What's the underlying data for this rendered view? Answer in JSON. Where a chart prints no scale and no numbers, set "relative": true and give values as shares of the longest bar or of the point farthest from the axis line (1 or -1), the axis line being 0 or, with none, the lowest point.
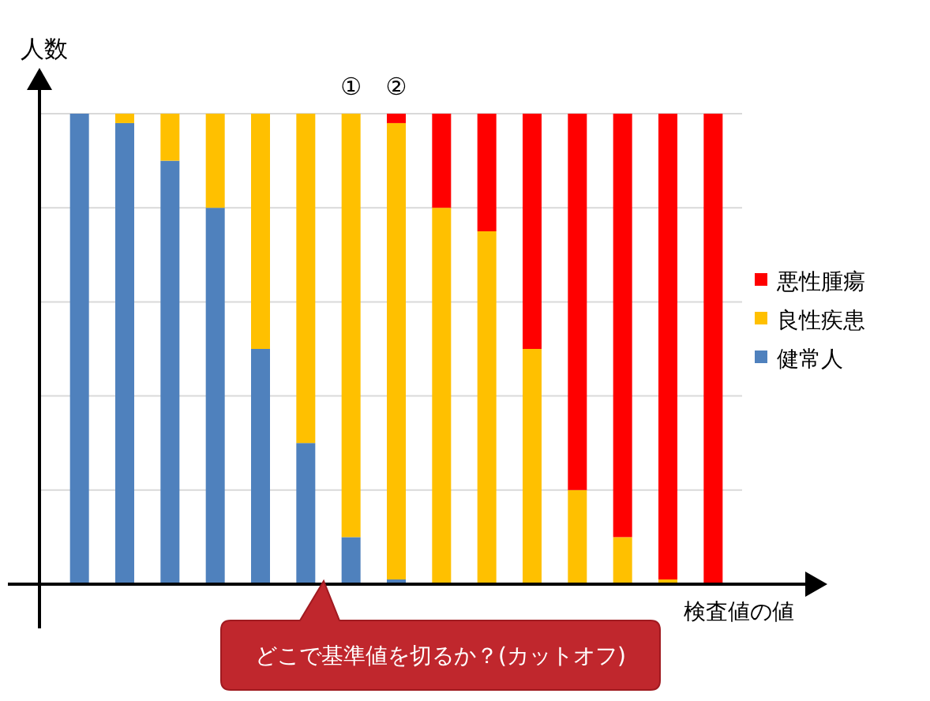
{
  "chart_data": {
    "type": "bar",
    "stacked": true,
    "relative": true,
    "grid": "y",
    "legend": "right",
    "ylabel": "人数",
    "xlabel": "検査値の値",
    "categories": [
      null,
      null,
      null,
      null,
      null,
      null,
      null,
      null,
      null,
      null,
      null,
      null,
      null,
      null,
      null
    ],
    "series": [
      {
        "name": "健常人",
        "color": "#4f81bd",
        "values": [
          1.0,
          0.98,
          0.9,
          0.8,
          0.5,
          0.3,
          0.1,
          0.01,
          0,
          0,
          0,
          0,
          0,
          0,
          0
        ]
      },
      {
        "name": "良性疾患",
        "color": "#ffc000",
        "values": [
          0,
          0.02,
          0.1,
          0.2,
          0.5,
          0.7,
          0.9,
          0.97,
          0.8,
          0.75,
          0.5,
          0.2,
          0.1,
          0.01,
          0
        ]
      },
      {
        "name": "悪性腫瘍",
        "color": "#ff0000",
        "values": [
          0,
          0,
          0,
          0,
          0,
          0,
          0,
          0.02,
          0.2,
          0.25,
          0.5,
          0.8,
          0.9,
          0.99,
          1.0
        ]
      }
    ],
    "annotations": [
      "①",
      "②",
      "どこで基準値を切るか？(カットオフ)"
    ]
  }
}
